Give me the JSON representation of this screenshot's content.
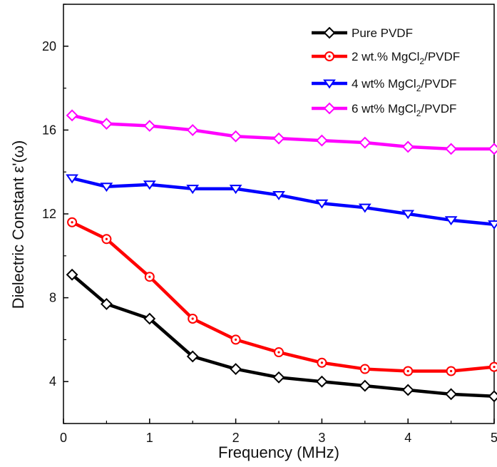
{
  "chart_data": {
    "type": "line",
    "title": "",
    "xlabel": "Frequency (MHz)",
    "ylabel_main": "Dielectric Constant ε",
    "ylabel_suffix": "ʹ(ω)",
    "xlim": [
      0,
      5
    ],
    "ylim": [
      2,
      22
    ],
    "xticks": [
      0,
      1,
      2,
      3,
      4,
      5
    ],
    "yticks": [
      4,
      8,
      12,
      16,
      20
    ],
    "xtick_labels": [
      "0",
      "1",
      "2",
      "3",
      "4",
      "5"
    ],
    "ytick_labels": [
      "4",
      "8",
      "12",
      "16",
      "20"
    ],
    "grid": false,
    "legend_position": "top-right",
    "x": [
      0.1,
      0.5,
      1.0,
      1.5,
      2.0,
      2.5,
      3.0,
      3.5,
      4.0,
      4.5,
      5.0
    ],
    "series": [
      {
        "name": "Pure PVDF",
        "legend": {
          "pre": "Pure PVDF",
          "sub": "",
          "post": ""
        },
        "color": "#000000",
        "marker": "diamond",
        "values": [
          9.1,
          7.7,
          7.0,
          5.2,
          4.6,
          4.2,
          4.0,
          3.8,
          3.6,
          3.4,
          3.3
        ]
      },
      {
        "name": "2 wt.% MgCl2/PVDF",
        "legend": {
          "pre": "2 wt.% MgCl",
          "sub": "2",
          "post": "/PVDF"
        },
        "color": "#ff0000",
        "marker": "circle-dot",
        "values": [
          11.6,
          10.8,
          9.0,
          7.0,
          6.0,
          5.4,
          4.9,
          4.6,
          4.5,
          4.5,
          4.7
        ]
      },
      {
        "name": "4 wt% MgCl2/PVDF",
        "legend": {
          "pre": "4 wt% MgCl",
          "sub": "2",
          "post": "/PVDF"
        },
        "color": "#0000ff",
        "marker": "triangle-down",
        "values": [
          13.7,
          13.3,
          13.4,
          13.2,
          13.2,
          12.9,
          12.5,
          12.3,
          12.0,
          11.7,
          11.5
        ]
      },
      {
        "name": "6 wt% MgCl2/PVDF",
        "legend": {
          "pre": "6 wt% MgCl",
          "sub": "2",
          "post": "/PVDF"
        },
        "color": "#ff00ff",
        "marker": "diamond",
        "values": [
          16.7,
          16.3,
          16.2,
          16.0,
          15.7,
          15.6,
          15.5,
          15.4,
          15.2,
          15.1,
          15.1
        ]
      }
    ]
  }
}
